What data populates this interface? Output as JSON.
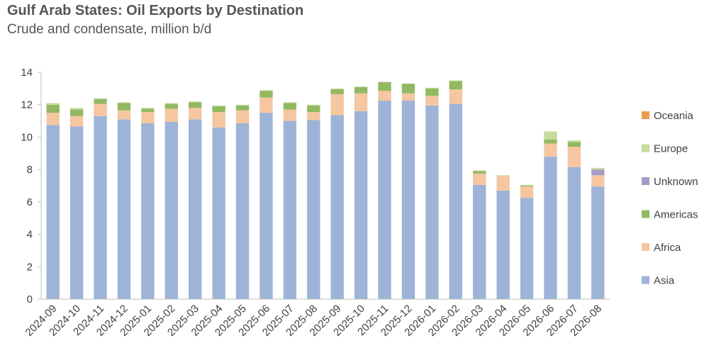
{
  "chart_data": {
    "type": "bar",
    "stacked": true,
    "title": "Gulf Arab States: Oil Exports by Destination",
    "subtitle": "Crude and condensate, million b/d",
    "categories": [
      "2024-09",
      "2024-10",
      "2024-11",
      "2024-12",
      "2025-01",
      "2025-02",
      "2025-03",
      "2025-04",
      "2025-05",
      "2025-06",
      "2025-07",
      "2025-08",
      "2025-09",
      "2025-10",
      "2025-11",
      "2025-12",
      "2026-01",
      "2026-02",
      "2026-03",
      "2026-04",
      "2026-05",
      "2026-06",
      "2026-07",
      "2026-08"
    ],
    "ylim": [
      0,
      14
    ],
    "yticks": [
      0,
      2,
      4,
      6,
      8,
      10,
      12,
      14
    ],
    "grid": false,
    "legend_position": "right",
    "series": [
      {
        "name": "Asia",
        "color": "#9DB3D7",
        "values": [
          10.75,
          10.65,
          11.3,
          11.1,
          10.85,
          10.95,
          11.1,
          10.6,
          10.85,
          11.5,
          11.0,
          11.05,
          11.35,
          11.6,
          12.25,
          12.25,
          11.95,
          12.05,
          7.05,
          6.7,
          6.25,
          8.8,
          8.15,
          6.95
        ]
      },
      {
        "name": "Africa",
        "color": "#F5C6A0",
        "values": [
          0.75,
          0.65,
          0.75,
          0.55,
          0.7,
          0.8,
          0.7,
          0.95,
          0.8,
          0.95,
          0.7,
          0.5,
          1.3,
          1.1,
          0.6,
          0.45,
          0.6,
          0.9,
          0.7,
          0.9,
          0.7,
          0.8,
          1.25,
          0.7
        ]
      },
      {
        "name": "Americas",
        "color": "#92B962",
        "values": [
          0.5,
          0.4,
          0.3,
          0.45,
          0.2,
          0.3,
          0.35,
          0.35,
          0.3,
          0.4,
          0.4,
          0.4,
          0.3,
          0.4,
          0.55,
          0.6,
          0.45,
          0.5,
          0.15,
          0.0,
          0.05,
          0.25,
          0.3,
          0.0
        ]
      },
      {
        "name": "Unknown",
        "color": "#A59BC9",
        "values": [
          0,
          0,
          0,
          0,
          0,
          0,
          0,
          0,
          0,
          0,
          0,
          0,
          0,
          0,
          0,
          0,
          0,
          0,
          0,
          0,
          0,
          0,
          0,
          0.35
        ]
      },
      {
        "name": "Europe",
        "color": "#C5DBA0",
        "values": [
          0.1,
          0.1,
          0.05,
          0.05,
          0.05,
          0.05,
          0.05,
          0.05,
          0.05,
          0.05,
          0.05,
          0.05,
          0.05,
          0.0,
          0.0,
          0.0,
          0.05,
          0.05,
          0.05,
          0.05,
          0.05,
          0.5,
          0.1,
          0.1
        ]
      },
      {
        "name": "Oceania",
        "color": "#ED9A4B",
        "values": [
          0,
          0,
          0,
          0,
          0,
          0,
          0,
          0,
          0,
          0,
          0,
          0,
          0,
          0,
          0,
          0,
          0,
          0,
          0,
          0,
          0,
          0,
          0,
          0
        ]
      }
    ],
    "legend_order": [
      "Oceania",
      "Europe",
      "Unknown",
      "Americas",
      "Africa",
      "Asia"
    ]
  }
}
